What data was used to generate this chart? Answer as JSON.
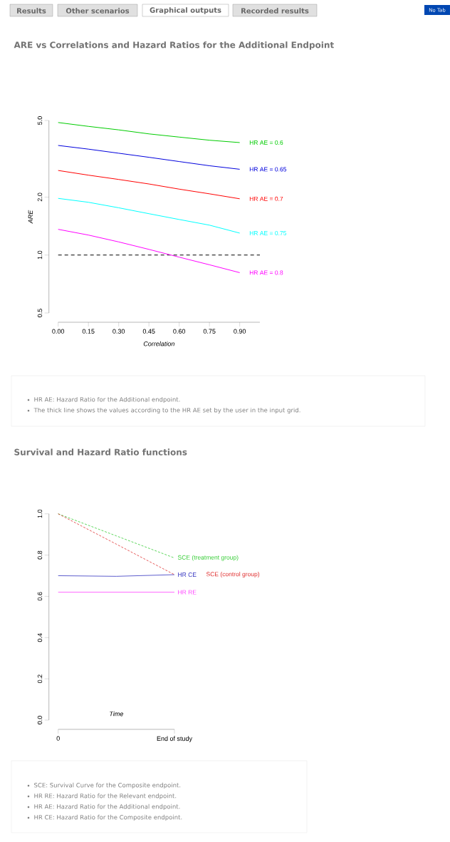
{
  "chart_data": [
    {
      "type": "other",
      "annotations": [
        "Results",
        "Other scenarios",
        "Graphical outputs",
        "Recorded results",
        "No Tab"
      ]
    },
    {
      "type": "line",
      "title": "ARE vs Correlations and Hazard Ratios for the Additional Endpoint",
      "xlabel": "Correlation",
      "ylabel": "ARE",
      "log": "y",
      "x": [
        0,
        0.15,
        0.3,
        0.45,
        0.6,
        0.75,
        0.9
      ],
      "series": [
        {
          "name": "HR AE = 0.6",
          "color": "#00cc00",
          "values": [
            4.88,
            4.66,
            4.47,
            4.26,
            4.1,
            3.95,
            3.84
          ]
        },
        {
          "name": "HR AE = 0.65",
          "color": "#0000dd",
          "values": [
            3.71,
            3.55,
            3.38,
            3.22,
            3.06,
            2.91,
            2.79
          ]
        },
        {
          "name": "HR AE = 0.7",
          "color": "#ff0000",
          "values": [
            2.75,
            2.6,
            2.47,
            2.34,
            2.2,
            2.08,
            1.96
          ]
        },
        {
          "name": "HR AE = 0.75",
          "color": "#00ffff",
          "values": [
            1.97,
            1.88,
            1.76,
            1.64,
            1.53,
            1.43,
            1.3
          ]
        },
        {
          "name": "HR AE = 0.8",
          "color": "#ff00ff",
          "values": [
            1.36,
            1.27,
            1.17,
            1.07,
            0.975,
            0.89,
            0.81
          ]
        }
      ],
      "xlim": [
        0,
        1
      ],
      "ylim": [
        0.5,
        5
      ],
      "xticks": [
        {
          "value": 0,
          "label": "0.00"
        },
        {
          "value": 0.15,
          "label": "0.15"
        },
        {
          "value": 0.3,
          "label": "0.30"
        },
        {
          "value": 0.45,
          "label": "0.45"
        },
        {
          "value": 0.6,
          "label": "0.60"
        },
        {
          "value": 0.75,
          "label": "0.75"
        },
        {
          "value": 0.9,
          "label": "0.90"
        }
      ],
      "yticks": [
        {
          "value": 0.5,
          "label": "0.5"
        },
        {
          "value": 1,
          "label": "1.0"
        },
        {
          "value": 2,
          "label": "2.0"
        },
        {
          "value": 5,
          "label": "5.0"
        }
      ],
      "ref_lines": [
        {
          "axis": "y",
          "value": 1,
          "color": "#000000",
          "line_style": "dashed"
        }
      ],
      "annotations": [
        "HR AE: Hazard Ratio for the Additional endpoint.",
        "The thick line shows the values according to the HR AE set by the user in the input grid."
      ]
    },
    {
      "type": "line",
      "title": "Survival and Hazard Ratio functions",
      "xlabel": "Time",
      "series": [
        {
          "name": "HR CE",
          "color": "#3535c0",
          "values": [
            0.7,
            0.697,
            0.705
          ],
          "line_style": "solid"
        },
        {
          "name": "HR RE",
          "color": "#ff40ff",
          "values": [
            0.62,
            0.62,
            0.62
          ],
          "line_style": "solid"
        },
        {
          "name": "SCE (treatment group)",
          "color": "#33cc33",
          "values": [
            1.0,
            0.893,
            0.786
          ],
          "line_style": "dashed"
        },
        {
          "name": "SCE (control group)",
          "color": "#e03030",
          "values": [
            1.0,
            0.853,
            0.705
          ],
          "line_style": "dashed"
        }
      ],
      "categories": [
        "0",
        null,
        "End of study"
      ],
      "ylim": [
        0,
        1
      ],
      "yticks": [
        {
          "value": 0,
          "label": "0.0"
        },
        {
          "value": 0.2,
          "label": "0.2"
        },
        {
          "value": 0.4,
          "label": "0.4"
        },
        {
          "value": 0.6,
          "label": "0.6"
        },
        {
          "value": 0.8,
          "label": "0.8"
        },
        {
          "value": 1,
          "label": "1.0"
        }
      ],
      "annotations": [
        "SCE: Survival Curve for the Composite endpoint.",
        "HR RE: Hazard Ratio for the Relevant endpoint.",
        "HR AE: Hazard Ratio for the Additional endpoint.",
        "HR CE: Hazard Ratio for the Composite endpoint."
      ]
    }
  ]
}
